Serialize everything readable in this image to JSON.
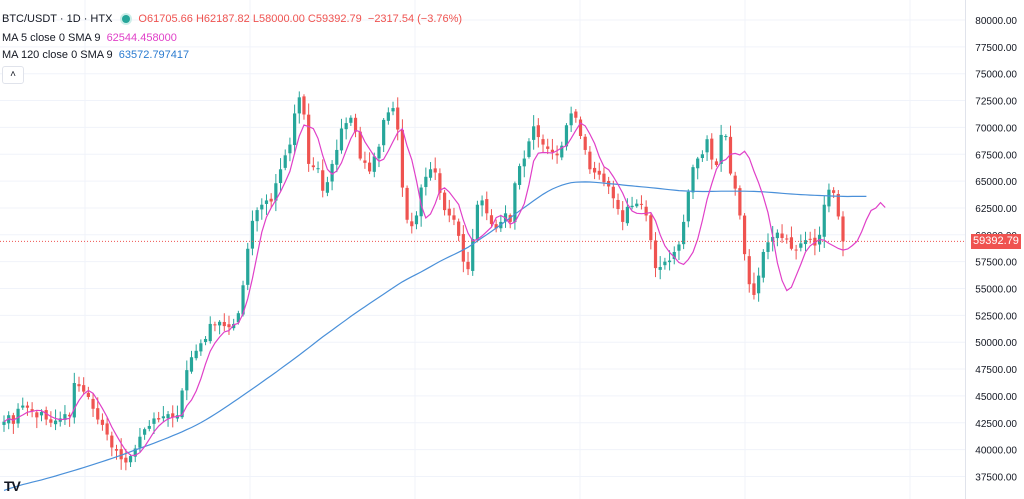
{
  "legend": {
    "symbol": "BTC/USDT · 1D · HTX",
    "open_label": "O",
    "open": "61705.66",
    "high_label": "H",
    "high": "62187.82",
    "low_label": "L",
    "low": "58000.00",
    "close_label": "C",
    "close": "59392.79",
    "change": "−2317.54 (−3.76%)",
    "ma5_label": "MA 5 close 0 SMA 9",
    "ma5_value": "62544.458000",
    "ma120_label": "MA 120 close 0 SMA 9",
    "ma120_value": "63572.797417",
    "collapse_icon": "chevron-up-icon",
    "collapse_glyph": "˄"
  },
  "price_tag": "59392.79",
  "logo_text": "TV",
  "colors": {
    "up": "#26a69a",
    "down": "#ef5350",
    "ma5": "#e040c8",
    "ma120": "#4a90d9",
    "grid": "#f0f3fa"
  },
  "chart_data": {
    "type": "candlestick",
    "ylim": [
      36500,
      81000
    ],
    "yticks": [
      "80000.00",
      "77500.00",
      "75000.00",
      "72500.00",
      "70000.00",
      "67500.00",
      "65000.00",
      "62500.00",
      "60000.00",
      "57500.00",
      "55000.00",
      "52500.00",
      "50000.00",
      "47500.00",
      "45000.00",
      "42500.00",
      "40000.00",
      "37500.00"
    ],
    "last_close": 59392.79,
    "closes": [
      42600,
      43200,
      42400,
      43800,
      44100,
      43900,
      43600,
      43000,
      43500,
      42800,
      42500,
      42700,
      42900,
      43300,
      43100,
      46200,
      45900,
      45400,
      44900,
      43800,
      42800,
      42300,
      41400,
      40200,
      39900,
      39100,
      38800,
      39400,
      40100,
      41200,
      41900,
      42200,
      42900,
      42800,
      43100,
      43300,
      43000,
      43200,
      45500,
      47400,
      48600,
      49200,
      49900,
      50300,
      51700,
      51600,
      51900,
      51500,
      51400,
      51700,
      52700,
      55300,
      58700,
      61300,
      62300,
      62800,
      63200,
      63100,
      64800,
      66100,
      67400,
      68400,
      71300,
      72800,
      71200,
      66600,
      66300,
      66200,
      64100,
      64900,
      66600,
      67900,
      69900,
      70400,
      70900,
      69600,
      67100,
      66700,
      65900,
      67300,
      68200,
      70700,
      71400,
      71800,
      69800,
      64400,
      61400,
      60800,
      61800,
      64400,
      65400,
      66100,
      65800,
      63900,
      62300,
      61800,
      61400,
      59900,
      57500,
      56800,
      59600,
      62800,
      63200,
      62000,
      61000,
      60600,
      61200,
      62000,
      61200,
      64800,
      66400,
      67100,
      68700,
      70100,
      69100,
      68400,
      68000,
      67700,
      67400,
      68300,
      70200,
      71300,
      70900,
      69200,
      67900,
      66100,
      65800,
      65600,
      64900,
      64500,
      63400,
      62400,
      61200,
      62600,
      62700,
      62900,
      62800,
      61800,
      59500,
      56900,
      57000,
      57500,
      57600,
      58400,
      59100,
      61200,
      64000,
      66300,
      67100,
      67500,
      68900,
      67000,
      66500,
      69300,
      69200,
      65700,
      64300,
      61800,
      58200,
      55400,
      54400,
      56200,
      58400,
      59300,
      59800,
      60200,
      59700,
      59600,
      58700,
      58600,
      59200,
      59500,
      59600,
      59000,
      60000,
      62800,
      64200,
      63900,
      61710,
      59392.79
    ],
    "ma5": [
      42600,
      42900,
      42733,
      43000,
      43220,
      43480,
      43560,
      43660,
      43620,
      43360,
      43080,
      42900,
      42780,
      42840,
      42900,
      43800,
      44580,
      45180,
      45500,
      45240,
      44560,
      43840,
      43040,
      42100,
      41320,
      40580,
      39880,
      39480,
      39460,
      39720,
      40280,
      40960,
      41660,
      42200,
      42580,
      42860,
      43020,
      43080,
      43220,
      44080,
      44620,
      45460,
      46600,
      47960,
      49160,
      49920,
      50480,
      50960,
      51080,
      51620,
      51760,
      52640,
      54040,
      55920,
      58080,
      60240,
      61660,
      62520,
      63240,
      64000,
      64920,
      65900,
      67600,
      69200,
      70220,
      70080,
      69880,
      68980,
      67380,
      66100,
      65640,
      65960,
      66700,
      67860,
      68960,
      69740,
      69580,
      68660,
      67980,
      67320,
      66840,
      67040,
      67800,
      68680,
      69520,
      69880,
      68260,
      66980,
      65040,
      62760,
      61560,
      61940,
      62900,
      64140,
      64380,
      63980,
      63400,
      62820,
      61380,
      60160,
      59440,
      59560,
      59900,
      60300,
      60720,
      61600,
      61800,
      61560,
      61000,
      61180,
      61980,
      62900,
      64680,
      66860,
      67600,
      67660,
      67640,
      67620,
      67840,
      68100,
      68300,
      68980,
      69720,
      70400,
      70140,
      69380,
      68500,
      67260,
      66340,
      66060,
      65420,
      64680,
      63880,
      62860,
      62220,
      62000,
      61960,
      62000,
      62080,
      61300,
      60000,
      58980,
      58360,
      57920,
      57420,
      57240,
      57700,
      58380,
      59600,
      61340,
      63300,
      64760,
      66100,
      66820,
      67000,
      67500,
      67580,
      67440,
      67780,
      67140,
      65940,
      64840,
      63580,
      62060,
      59860,
      57380,
      55740,
      54800,
      55120,
      56180,
      57240,
      58400,
      58980,
      59280,
      59560,
      59500,
      59200,
      58970,
      58720,
      58580,
      58680,
      59000,
      59400,
      60300,
      61400,
      62260,
      62500,
      63000,
      62544
    ],
    "ma120": [
      36200,
      36350,
      36490,
      36620,
      36740,
      36850,
      36960,
      37070,
      37180,
      37300,
      37420,
      37540,
      37670,
      37800,
      37930,
      38060,
      38190,
      38320,
      38460,
      38600,
      38740,
      38880,
      39030,
      39180,
      39330,
      39480,
      39640,
      39800,
      39960,
      40120,
      40280,
      40440,
      40600,
      40770,
      40940,
      41110,
      41290,
      41470,
      41660,
      41860,
      42060,
      42280,
      42510,
      42760,
      43020,
      43290,
      43570,
      43860,
      44150,
      44450,
      44750,
      45050,
      45350,
      45650,
      45960,
      46270,
      46580,
      46890,
      47200,
      47520,
      47840,
      48160,
      48480,
      48810,
      49140,
      49480,
      49820,
      50160,
      50490,
      50810,
      51130,
      51450,
      51770,
      52090,
      52400,
      52710,
      53010,
      53300,
      53600,
      53890,
      54180,
      54480,
      54770,
      55060,
      55350,
      55620,
      55870,
      56100,
      56320,
      56550,
      56790,
      57030,
      57280,
      57520,
      57750,
      57960,
      58170,
      58380,
      58600,
      58840,
      59120,
      59420,
      59720,
      60020,
      60320,
      60630,
      60940,
      61260,
      61580,
      61910,
      62230,
      62540,
      62860,
      63170,
      63470,
      63770,
      64030,
      64260,
      64450,
      64620,
      64750,
      64850,
      64900,
      64920,
      64930,
      64920,
      64890,
      64850,
      64810,
      64770,
      64730,
      64690,
      64640,
      64590,
      64550,
      64510,
      64470,
      64430,
      64390,
      64350,
      64300,
      64250,
      64200,
      64160,
      64120,
      64090,
      64070,
      64050,
      64040,
      64030,
      64030,
      64040,
      64050,
      64060,
      64060,
      64060,
      64060,
      64060,
      64060,
      64050,
      64040,
      64020,
      64000,
      63970,
      63940,
      63900,
      63860,
      63830,
      63800,
      63770,
      63740,
      63720,
      63700,
      63680,
      63660,
      63640,
      63620,
      63600,
      63590,
      63580,
      63570,
      63580,
      63580,
      63575,
      63572.8
    ]
  }
}
